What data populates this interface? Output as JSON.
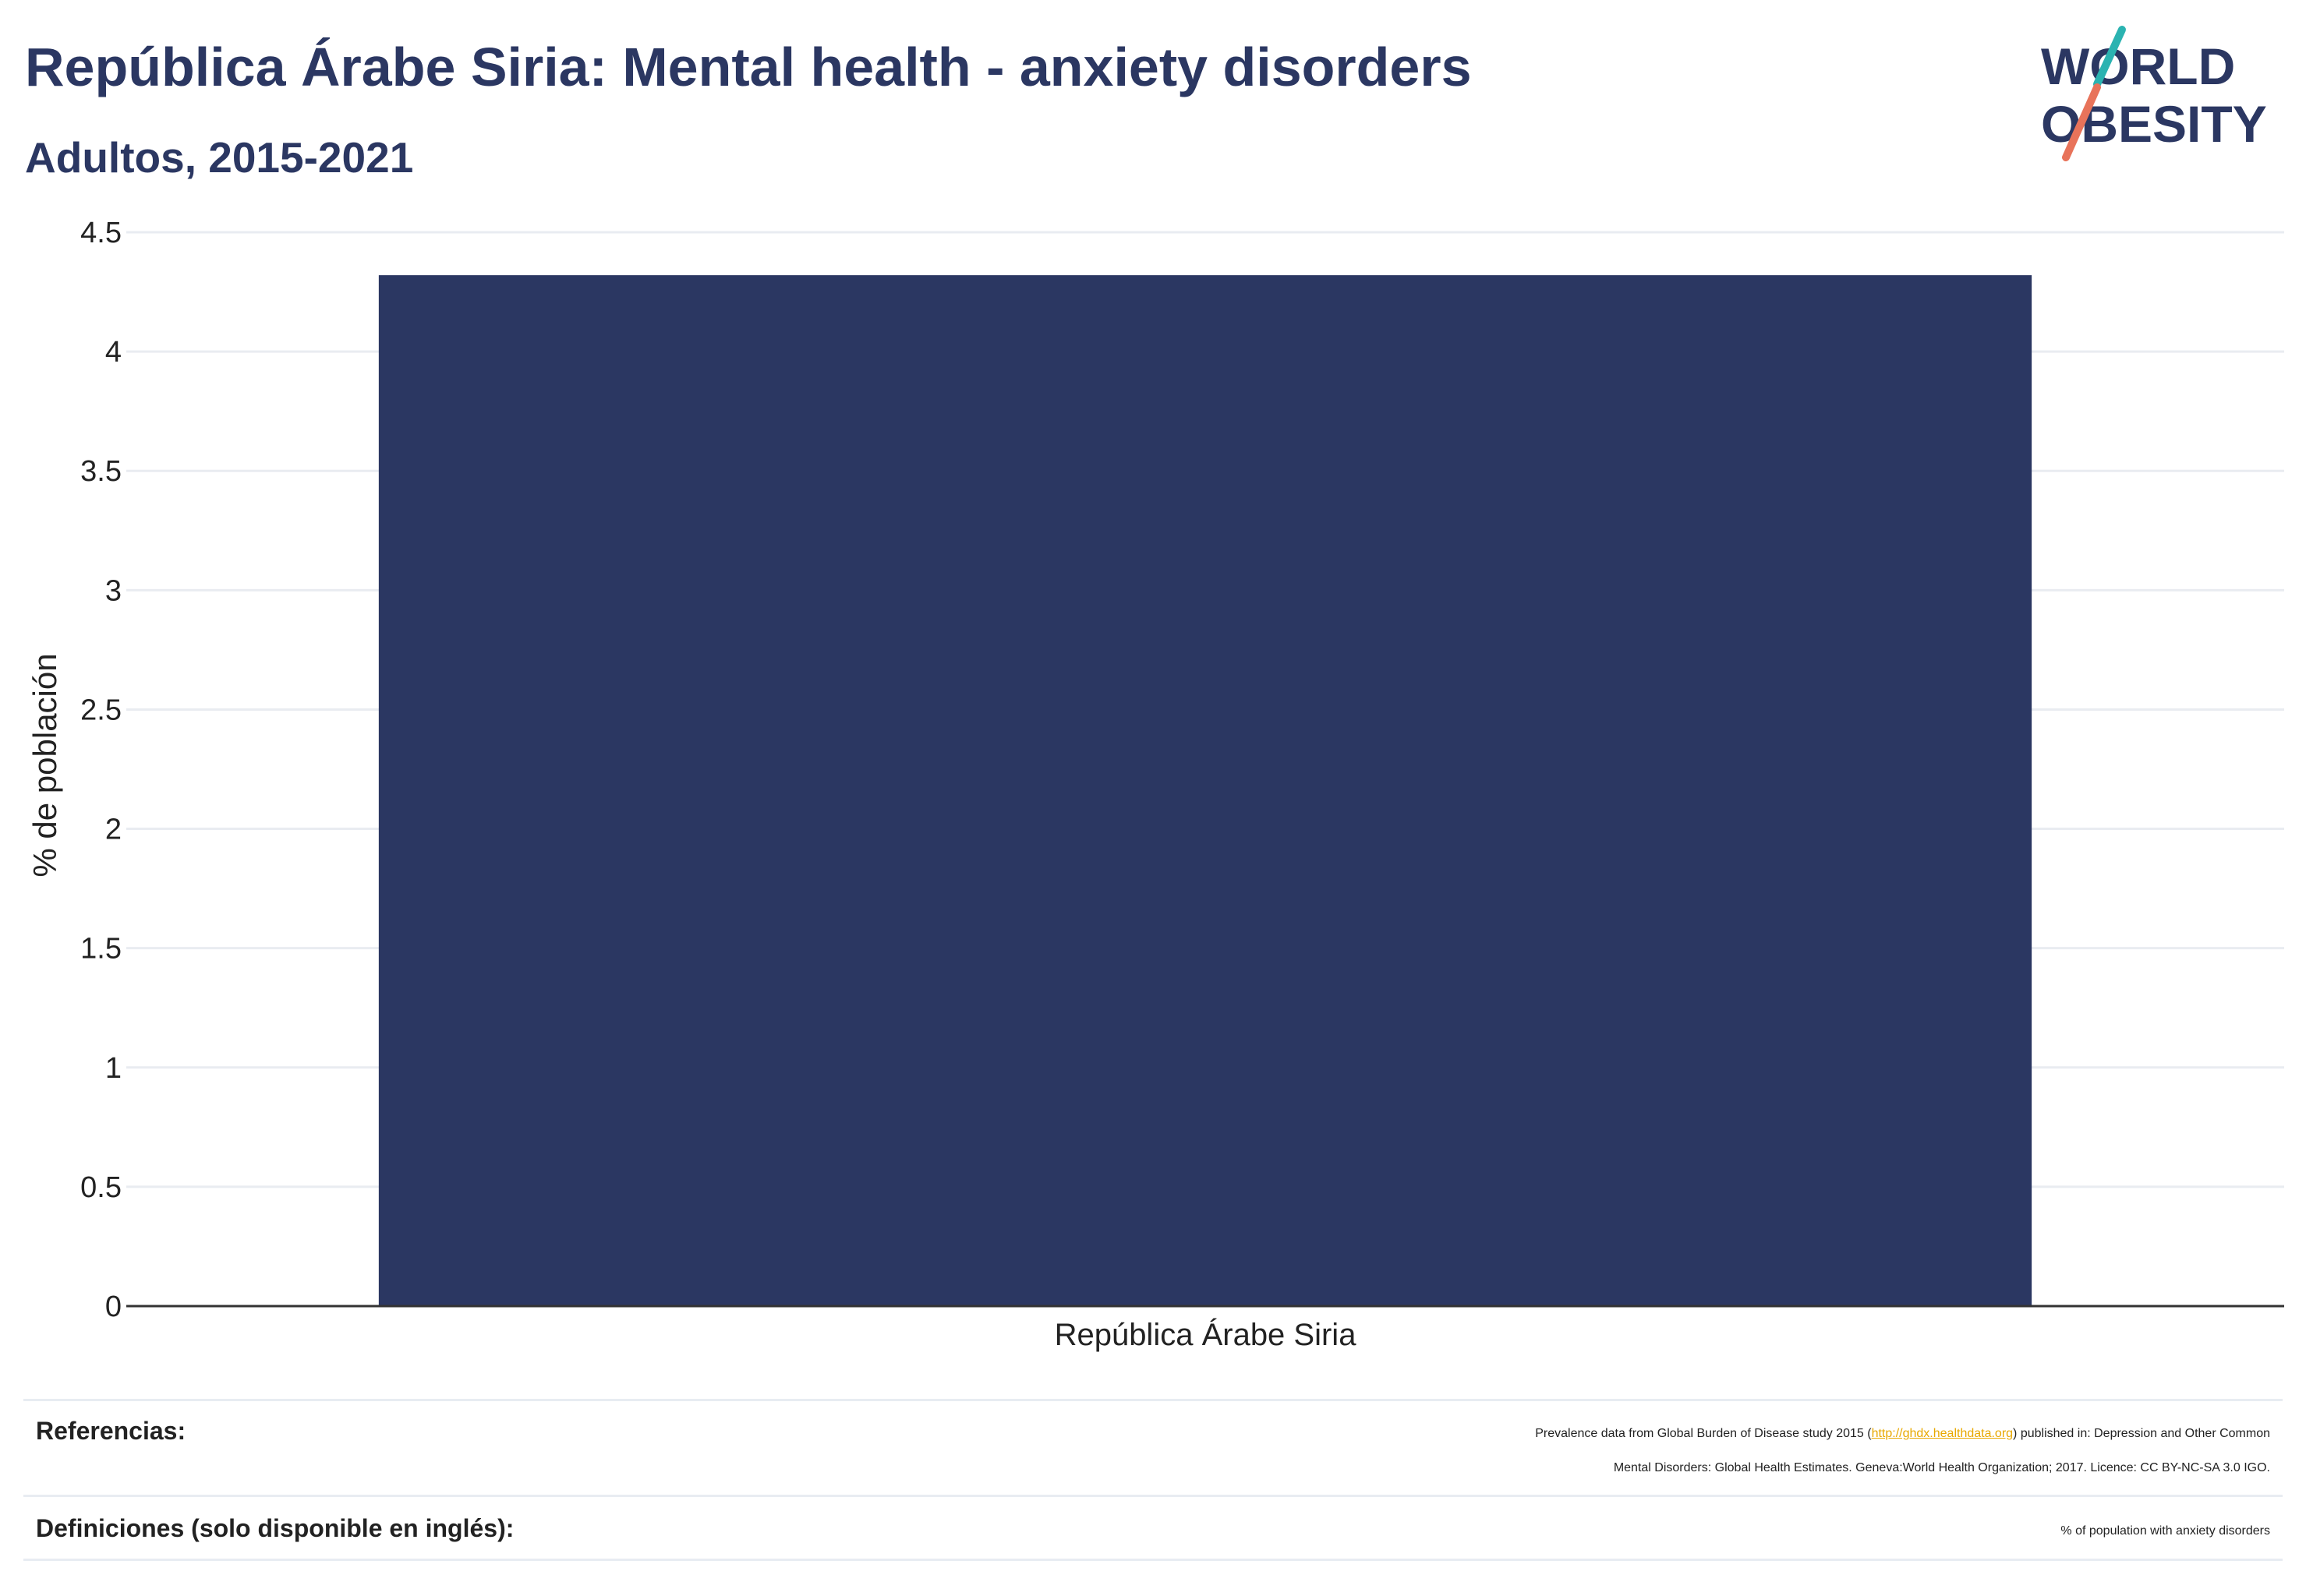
{
  "header": {
    "title": "República Árabe Siria: Mental health - anxiety disorders",
    "subtitle": "Adultos, 2015-2021"
  },
  "logo": {
    "line1": "WORLD",
    "line2": "OBESITY",
    "accent_teal": "#2bb3b1",
    "accent_coral": "#e8735a"
  },
  "chart_data": {
    "type": "bar",
    "categories": [
      "República Árabe Siria"
    ],
    "values": [
      4.32
    ],
    "title": "República Árabe Siria: Mental health - anxiety disorders",
    "subtitle": "Adultos, 2015-2021",
    "xlabel": "",
    "ylabel": "% de población",
    "ylim": [
      0,
      4.5
    ],
    "yticks": [
      0,
      0.5,
      1,
      1.5,
      2,
      2.5,
      3,
      3.5,
      4,
      4.5
    ],
    "ytick_labels": [
      "0",
      "0.5",
      "1",
      "1.5",
      "2",
      "2.5",
      "3",
      "3.5",
      "4",
      "4.5"
    ],
    "grid": true,
    "bar_color": "#2b3762"
  },
  "footer": {
    "references_label": "Referencias:",
    "references_pre": "Prevalence data from Global Burden of Disease study 2015 (",
    "references_link": "http://ghdx.healthdata.org",
    "references_post1": ") published in: Depression and Other Common",
    "references_line2": "Mental Disorders: Global Health Estimates. Geneva:World Health Organization; 2017. Licence: CC BY-NC-SA 3.0 IGO.",
    "definitions_label": "Definiciones (solo disponible en inglés):",
    "definitions_value": "% of population with anxiety disorders"
  }
}
